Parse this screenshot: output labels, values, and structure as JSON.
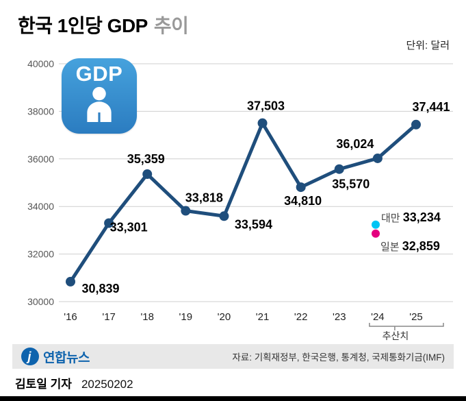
{
  "header": {
    "title_main": "한국 1인당 GDP",
    "title_sub": "추이",
    "unit": "단위: 달러"
  },
  "badge": {
    "label": "GDP"
  },
  "chart_data": {
    "type": "line",
    "title": "한국 1인당 GDP 추이",
    "categories": [
      "'16",
      "'17",
      "'18",
      "'19",
      "'20",
      "'21",
      "'22",
      "'23",
      "'24",
      "'25"
    ],
    "series": [
      {
        "name": "한국 1인당 GDP (달러)",
        "color": "#1f4e7c",
        "values": [
          30839,
          33301,
          35359,
          33818,
          33594,
          37503,
          34810,
          35570,
          36024,
          37441
        ]
      }
    ],
    "ylim": [
      30000,
      40000
    ],
    "yticks": [
      30000,
      32000,
      34000,
      36000,
      38000,
      40000
    ],
    "grid": true,
    "legend": "none",
    "reference_points": [
      {
        "label": "대만",
        "value": 33234,
        "color": "#00c4f4"
      },
      {
        "label": "일본",
        "value": 32859,
        "color": "#e4007f"
      }
    ],
    "annotation": {
      "label": "추산치",
      "span": [
        "'24",
        "'25"
      ]
    }
  },
  "footer": {
    "logo_text": "연합뉴스",
    "source": "자료: 기획재정부, 한국은행, 통계청, 국제통화기금(IMF)"
  },
  "byline": {
    "reporter": "김토일 기자",
    "date": "20250202"
  }
}
